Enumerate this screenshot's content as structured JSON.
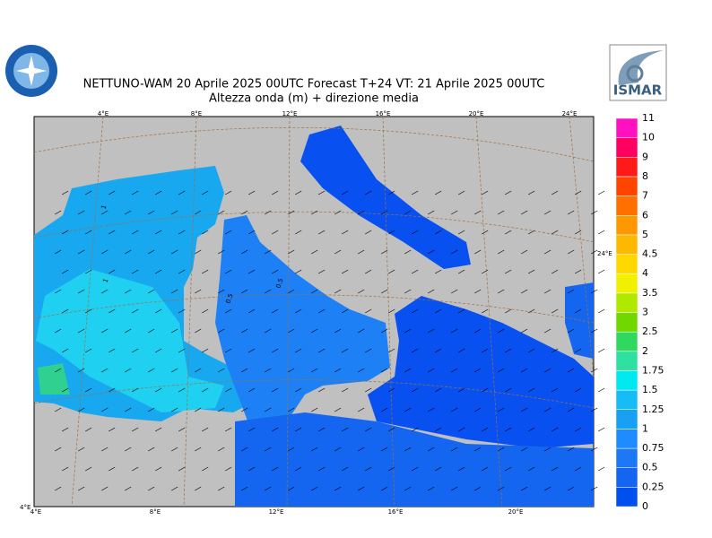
{
  "header": {
    "title": "NETTUNO-WAM  20   Aprile  2025 00UTC Forecast T+24 VT: 21   Aprile  2025 00UTC",
    "subtitle": "Altezza onda (m) + direzione media"
  },
  "logo": {
    "text": "ISMAR"
  },
  "colorbar": {
    "labels": [
      "0",
      "0.25",
      "0.5",
      "0.75",
      "1",
      "1.25",
      "1.5",
      "1.75",
      "2",
      "2.5",
      "3",
      "3.5",
      "4",
      "4.5",
      "5",
      "6",
      "7",
      "8",
      "9",
      "10",
      "11"
    ],
    "colors": [
      "#0050f0",
      "#1466f0",
      "#1e78f5",
      "#1e8cff",
      "#18a0f5",
      "#18bcf5",
      "#00e8f0",
      "#30e0a0",
      "#30d860",
      "#70d800",
      "#b0e800",
      "#f0f000",
      "#ffd800",
      "#ffb800",
      "#ff9800",
      "#ff7000",
      "#ff4400",
      "#ff1a1a",
      "#ff0060",
      "#ff10c0"
    ]
  },
  "graticule": {
    "top_labels": [
      "4°E",
      "8°E",
      "12°E",
      "16°E",
      "20°E",
      "24°E"
    ],
    "bottom_labels": [
      "4°E",
      "8°E",
      "12°E",
      "16°E",
      "20°E"
    ],
    "right_label": "24°E",
    "corner_label": "4°E"
  },
  "contour_labels": [
    "1",
    "1",
    "0.5",
    "0.5"
  ]
}
